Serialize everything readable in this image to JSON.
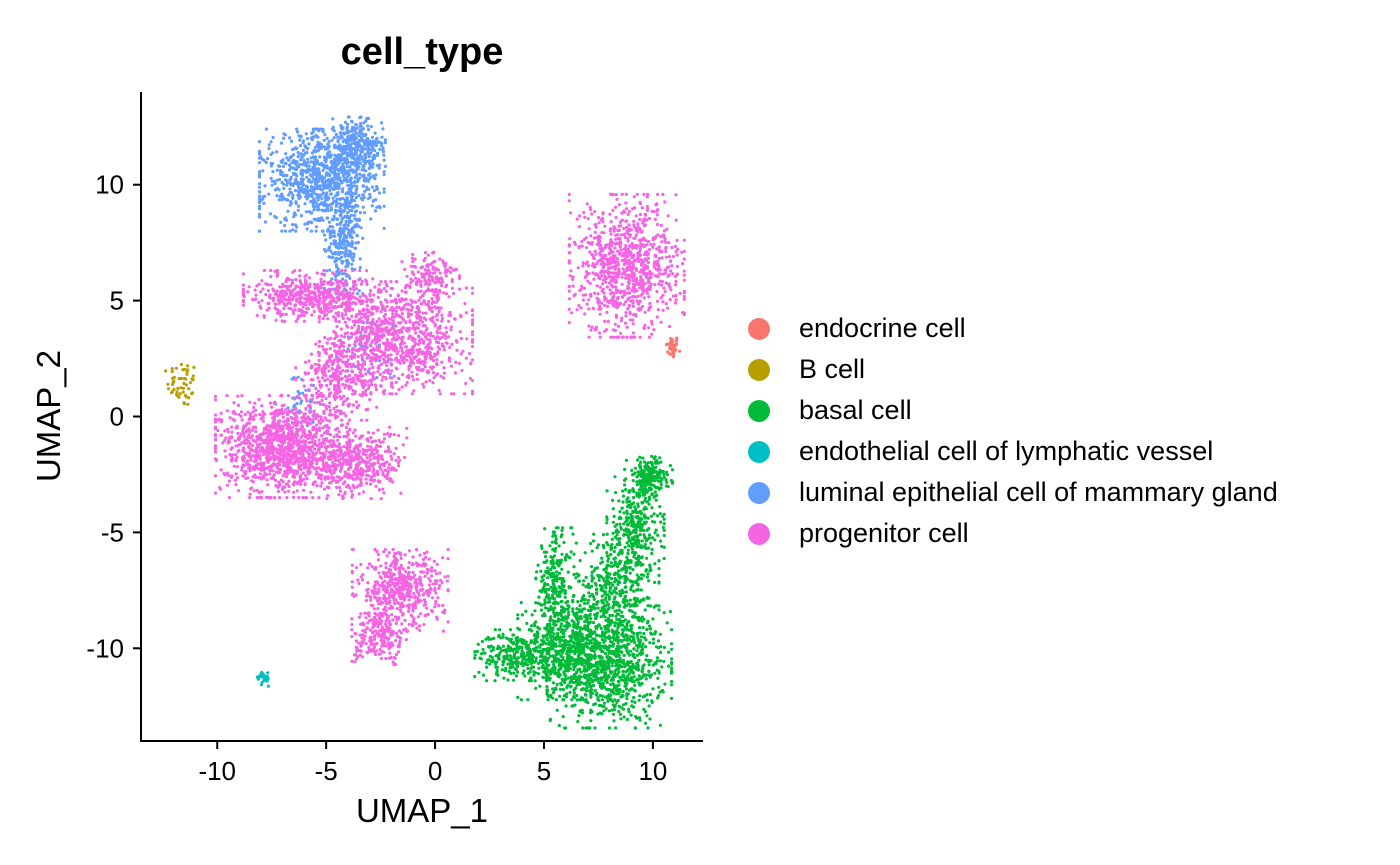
{
  "chart_data": {
    "type": "scatter",
    "title": "cell_type",
    "xlabel": "UMAP_1",
    "ylabel": "UMAP_2",
    "xlim": [
      -13.5,
      12.3
    ],
    "ylim": [
      -14.0,
      14.0
    ],
    "xticks": [
      -10,
      -5,
      0,
      5,
      10
    ],
    "xtick_labels": [
      "-10",
      "-5",
      "0",
      "5",
      "10"
    ],
    "yticks": [
      -10,
      -5,
      0,
      5,
      10
    ],
    "ytick_labels": [
      "-10",
      "-5",
      "0",
      "5",
      "10"
    ],
    "grid": false,
    "legend_position": "right",
    "series": [
      {
        "name": "endocrine cell",
        "color": "#F8766D",
        "clusters": [
          {
            "cx": 10.9,
            "cy": 3.0,
            "sx": 0.15,
            "sy": 0.25,
            "n": 40
          }
        ]
      },
      {
        "name": "B cell",
        "color": "#B79F00",
        "clusters": [
          {
            "cx": -11.6,
            "cy": 1.4,
            "sx": 0.35,
            "sy": 0.5,
            "n": 50
          }
        ]
      },
      {
        "name": "basal cell",
        "color": "#00BA38",
        "clusters": [
          {
            "cx": 8.0,
            "cy": -10.8,
            "sx": 1.3,
            "sy": 1.2,
            "n": 900
          },
          {
            "cx": 6.0,
            "cy": -9.8,
            "sx": 1.0,
            "sy": 1.1,
            "n": 500
          },
          {
            "cx": 3.8,
            "cy": -10.3,
            "sx": 0.9,
            "sy": 0.5,
            "n": 300
          },
          {
            "cx": 8.3,
            "cy": -7.5,
            "sx": 0.9,
            "sy": 1.1,
            "n": 400
          },
          {
            "cx": 9.2,
            "cy": -4.8,
            "sx": 0.6,
            "sy": 1.0,
            "n": 300
          },
          {
            "cx": 9.8,
            "cy": -2.6,
            "sx": 0.5,
            "sy": 0.4,
            "n": 200
          },
          {
            "cx": 5.5,
            "cy": -7.0,
            "sx": 0.4,
            "sy": 1.0,
            "n": 200
          }
        ]
      },
      {
        "name": "endothelial cell of lymphatic vessel",
        "color": "#00BFC4",
        "clusters": [
          {
            "cx": -7.9,
            "cy": -11.3,
            "sx": 0.15,
            "sy": 0.15,
            "n": 30
          }
        ]
      },
      {
        "name": "luminal epithelial cell of mammary gland",
        "color": "#619CFF",
        "clusters": [
          {
            "cx": -5.2,
            "cy": 10.2,
            "sx": 1.3,
            "sy": 1.0,
            "n": 900
          },
          {
            "cx": -3.6,
            "cy": 11.6,
            "sx": 0.6,
            "sy": 0.6,
            "n": 300
          },
          {
            "cx": -4.2,
            "cy": 7.5,
            "sx": 0.4,
            "sy": 1.0,
            "n": 250
          },
          {
            "cx": -6.0,
            "cy": 0.8,
            "sx": 0.6,
            "sy": 0.6,
            "n": 40
          },
          {
            "cx": -3.2,
            "cy": 3.0,
            "sx": 0.6,
            "sy": 0.6,
            "n": 40
          }
        ]
      },
      {
        "name": "progenitor cell",
        "color": "#F564E3",
        "clusters": [
          {
            "cx": -7.0,
            "cy": -1.3,
            "sx": 1.4,
            "sy": 1.0,
            "n": 1200
          },
          {
            "cx": -3.5,
            "cy": -2.0,
            "sx": 1.0,
            "sy": 0.7,
            "n": 400
          },
          {
            "cx": -1.8,
            "cy": 3.4,
            "sx": 1.6,
            "sy": 1.1,
            "n": 900
          },
          {
            "cx": -5.5,
            "cy": 5.2,
            "sx": 1.5,
            "sy": 0.5,
            "n": 500
          },
          {
            "cx": -4.2,
            "cy": 1.6,
            "sx": 1.0,
            "sy": 0.8,
            "n": 300
          },
          {
            "cx": -0.2,
            "cy": 6.0,
            "sx": 0.6,
            "sy": 0.6,
            "n": 150
          },
          {
            "cx": -1.6,
            "cy": -7.5,
            "sx": 1.0,
            "sy": 0.8,
            "n": 500
          },
          {
            "cx": -2.5,
            "cy": -9.6,
            "sx": 0.6,
            "sy": 0.5,
            "n": 200
          },
          {
            "cx": 8.8,
            "cy": 6.5,
            "sx": 1.2,
            "sy": 1.4,
            "n": 900
          }
        ]
      }
    ]
  }
}
